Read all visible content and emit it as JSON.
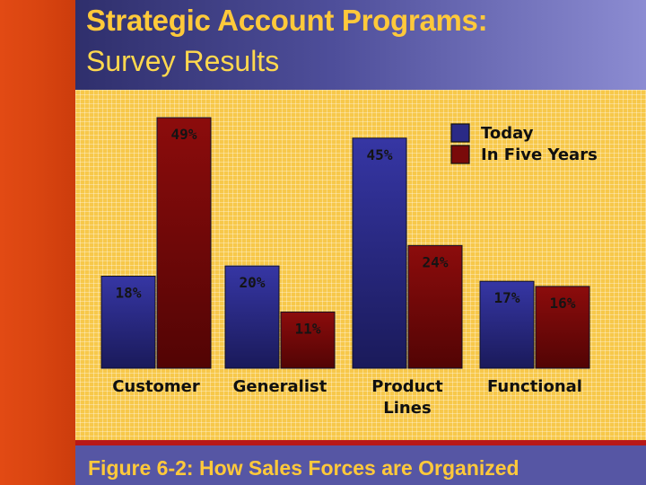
{
  "slide": {
    "title": "Strategic Account Programs:",
    "subtitle": "Survey Results",
    "caption": "Figure 6-2:  How Sales Forces are Organized"
  },
  "colors": {
    "today": "#2a2a86",
    "five_years": "#7a0a0a",
    "header": "#4e4e9a",
    "title": "#ffc93a",
    "background": "#f7c84a",
    "accent_strip": "#d84410"
  },
  "chart_data": {
    "type": "bar",
    "categories": [
      "Customer",
      "Generalist",
      "Product Lines",
      "Functional"
    ],
    "category_lines": [
      [
        "Customer"
      ],
      [
        "Generalist"
      ],
      [
        "Product",
        "Lines"
      ],
      [
        "Functional"
      ]
    ],
    "series": [
      {
        "name": "Today",
        "values": [
          18,
          20,
          45,
          17
        ],
        "labels": [
          "18%",
          "20%",
          "45%",
          "17%"
        ]
      },
      {
        "name": "In Five Years",
        "values": [
          49,
          11,
          24,
          16
        ],
        "labels": [
          "49%",
          "11%",
          "24%",
          "16%"
        ]
      }
    ],
    "ylim": [
      0,
      50
    ],
    "grid": false,
    "legend": "top-right"
  }
}
